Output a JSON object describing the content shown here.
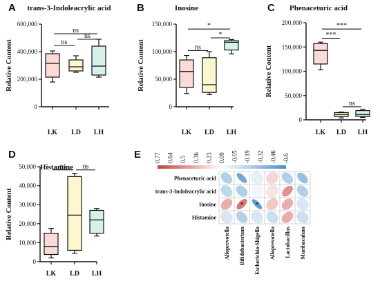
{
  "chart_data": [
    {
      "panel": "A",
      "type": "box",
      "title": "trans-3-Indoleacrylic acid",
      "ylabel": "Relative Content",
      "ylim": [
        0,
        600000
      ],
      "yticks": [
        0,
        200000,
        400000,
        600000
      ],
      "ytick_labels": [
        "0",
        "200,000",
        "400,000",
        "600,000"
      ],
      "categories": [
        "LK",
        "LD",
        "LH"
      ],
      "boxes": [
        {
          "min": 180000,
          "q1": 215000,
          "median": 315000,
          "q3": 385000,
          "max": 405000,
          "color": "#fadbd8"
        },
        {
          "min": 250000,
          "q1": 260000,
          "median": 290000,
          "q3": 340000,
          "max": 370000,
          "color": "#fcf7cf"
        },
        {
          "min": 215000,
          "q1": 230000,
          "median": 295000,
          "q3": 440000,
          "max": 490000,
          "color": "#d4f2ea"
        }
      ],
      "brackets": [
        {
          "from": 0,
          "to": 2,
          "y": 530000,
          "label": "ns"
        },
        {
          "from": 0,
          "to": 1,
          "y": 445000,
          "label": "ns"
        },
        {
          "from": 1,
          "to": 2,
          "y": 490000,
          "label": "ns"
        }
      ]
    },
    {
      "panel": "B",
      "type": "box",
      "title": "Inosine",
      "ylabel": "Relative Content",
      "ylim": [
        0,
        150000
      ],
      "yticks": [
        0,
        50000,
        100000,
        150000
      ],
      "ytick_labels": [
        "0",
        "50,000",
        "100,000",
        "150,000"
      ],
      "categories": [
        "LK",
        "LD",
        "LH"
      ],
      "boxes": [
        {
          "min": 24000,
          "q1": 35000,
          "median": 64000,
          "q3": 85000,
          "max": 93000,
          "color": "#fadbd8"
        },
        {
          "min": 22000,
          "q1": 26000,
          "median": 40000,
          "q3": 89000,
          "max": 100000,
          "color": "#fcf7cf"
        },
        {
          "min": 96000,
          "q1": 103000,
          "median": 117000,
          "q3": 120000,
          "max": 122000,
          "color": "#d4f2ea"
        }
      ],
      "brackets": [
        {
          "from": 0,
          "to": 2,
          "y": 141000,
          "label": "*"
        },
        {
          "from": 0,
          "to": 1,
          "y": 102000,
          "label": "ns"
        },
        {
          "from": 1,
          "to": 2,
          "y": 125000,
          "label": "*"
        }
      ]
    },
    {
      "panel": "C",
      "type": "box",
      "title": "Phenaceturic acid",
      "ylabel": "Relative Content",
      "ylim": [
        0,
        200000
      ],
      "yticks": [
        0,
        50000,
        100000,
        150000,
        200000
      ],
      "ytick_labels": [
        "0",
        "50,000",
        "100,000",
        "150,000",
        "200,000"
      ],
      "categories": [
        "LK",
        "LD",
        "LH"
      ],
      "boxes": [
        {
          "min": 103000,
          "q1": 115000,
          "median": 143000,
          "q3": 157000,
          "max": 160000,
          "color": "#fadbd8"
        },
        {
          "min": 4000,
          "q1": 7000,
          "median": 11000,
          "q3": 15000,
          "max": 16000,
          "color": "#fcf7cf"
        },
        {
          "min": 5000,
          "q1": 7000,
          "median": 11000,
          "q3": 19000,
          "max": 22000,
          "color": "#d4f2ea"
        }
      ],
      "brackets": [
        {
          "from": 0,
          "to": 2,
          "y": 187000,
          "label": "***"
        },
        {
          "from": 0,
          "to": 1,
          "y": 168000,
          "label": "***"
        },
        {
          "from": 1,
          "to": 2,
          "y": 27000,
          "label": "ns"
        }
      ]
    },
    {
      "panel": "D",
      "type": "box",
      "title": "Histamine",
      "ylabel": "Relative Content",
      "ylim": [
        0,
        50000
      ],
      "yticks": [
        0,
        10000,
        20000,
        30000,
        40000,
        50000
      ],
      "ytick_labels": [
        "0",
        "10,000",
        "20,000",
        "30,000",
        "40,000",
        "50,000"
      ],
      "categories": [
        "LK",
        "LD",
        "LH"
      ],
      "boxes": [
        {
          "min": 2000,
          "q1": 3800,
          "median": 8000,
          "q3": 15000,
          "max": 17500,
          "color": "#fadbd8"
        },
        {
          "min": 4500,
          "q1": 6000,
          "median": 24500,
          "q3": 44800,
          "max": 46500,
          "color": "#fcf7cf"
        },
        {
          "min": 13500,
          "q1": 15000,
          "median": 22000,
          "q3": 27000,
          "max": 28000,
          "color": "#d4f2ea"
        }
      ],
      "brackets": [
        {
          "from": 0,
          "to": 1,
          "y": 48300,
          "label": "ns"
        },
        {
          "from": 1,
          "to": 2,
          "y": 48300,
          "label": "ns"
        }
      ]
    },
    {
      "panel": "E",
      "type": "heatmap",
      "rows": [
        "Phenaceturic acid",
        "trans-3-Indoleacrylic acid",
        "Inosine",
        "Histamine"
      ],
      "columns": [
        "Alloprevotella",
        "Bifidobacterium",
        "Escherichia-Shigella",
        "Alloprevotella",
        "Lactobacillus",
        "Muribaculum"
      ],
      "colorbar_labels": [
        "0.77",
        "0.64",
        "0.5",
        "0.36",
        "0.23",
        "0.09",
        "-0.05",
        "-0.19",
        "-0.32",
        "-0.46",
        "-0.6"
      ],
      "colorbar_colors": [
        "#c9413c",
        "#4a90c8"
      ],
      "values": [
        [
          -0.3,
          -0.55,
          -0.1,
          0.15,
          -0.3,
          -0.4
        ],
        [
          -0.25,
          -0.3,
          -0.05,
          0.1,
          0.4,
          -0.3
        ],
        [
          0.3,
          0.5,
          -0.6,
          0.2,
          0.3,
          -0.15
        ],
        [
          -0.15,
          -0.3,
          -0.15,
          -0.2,
          0.3,
          -0.2
        ]
      ],
      "significance": [
        [
          "",
          "",
          "",
          "",
          "",
          ""
        ],
        [
          "",
          "",
          "",
          "",
          "",
          ""
        ],
        [
          "",
          "*",
          "*",
          "",
          "",
          ""
        ],
        [
          "",
          "",
          "",
          "",
          "",
          ""
        ]
      ]
    }
  ]
}
